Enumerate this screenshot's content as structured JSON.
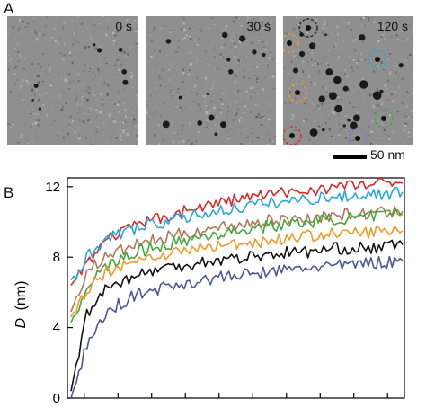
{
  "panel_a": {
    "letter": "A",
    "frames": [
      {
        "time": "0 s"
      },
      {
        "time": "30 s"
      },
      {
        "time": "120 s"
      }
    ],
    "scale_label": "50 nm"
  },
  "panel_b": {
    "letter": "B"
  },
  "chart_data": {
    "type": "line",
    "ylabel_italic": "D",
    "ylabel_unit": "(nm)",
    "ylim": [
      0,
      12.5
    ],
    "yticks": [
      0,
      4,
      8,
      12
    ],
    "xticks_count": 10,
    "series_colors": [
      "#d72a2b",
      "#2ba8d9",
      "#b07a5a",
      "#44a83c",
      "#f09a28",
      "#111111",
      "#4e559c"
    ],
    "series": [
      {
        "color": "#d72a2b",
        "y": [
          6.4,
          7.7,
          8.8,
          9.4,
          9.7,
          10.1,
          10.3,
          10.6,
          10.8,
          11.0,
          11.2,
          11.4,
          11.5,
          11.6,
          11.7,
          11.8,
          11.9,
          12.0,
          12.1,
          12.1,
          12.2,
          12.2
        ]
      },
      {
        "color": "#2ba8d9",
        "y": [
          6.7,
          8.0,
          8.9,
          9.3,
          9.6,
          9.8,
          10.0,
          10.2,
          10.4,
          10.6,
          10.7,
          10.9,
          11.0,
          11.1,
          11.2,
          11.3,
          11.4,
          11.4,
          11.5,
          11.6,
          11.6,
          11.7
        ]
      },
      {
        "color": "#b07a5a",
        "y": [
          4.9,
          7.2,
          7.9,
          8.3,
          8.7,
          8.9,
          9.1,
          9.3,
          9.5,
          9.6,
          9.8,
          9.9,
          10.0,
          10.1,
          10.2,
          10.2,
          10.3,
          10.4,
          10.4,
          10.5,
          10.5,
          10.6
        ]
      },
      {
        "color": "#44a83c",
        "y": [
          4.3,
          6.3,
          7.3,
          7.8,
          8.2,
          8.5,
          8.7,
          8.9,
          9.1,
          9.3,
          9.4,
          9.6,
          9.7,
          9.8,
          9.9,
          10.0,
          10.1,
          10.2,
          10.2,
          10.3,
          10.4,
          10.4
        ]
      },
      {
        "color": "#f09a28",
        "y": [
          4.6,
          6.2,
          7.0,
          7.5,
          7.8,
          8.0,
          8.2,
          8.3,
          8.5,
          8.6,
          8.7,
          8.8,
          8.9,
          9.0,
          9.1,
          9.2,
          9.3,
          9.3,
          9.4,
          9.4,
          9.5,
          9.5
        ]
      },
      {
        "color": "#111111",
        "y": [
          0.4,
          4.8,
          6.1,
          6.6,
          6.9,
          7.2,
          7.4,
          7.5,
          7.7,
          7.8,
          7.9,
          8.0,
          8.1,
          8.2,
          8.3,
          8.3,
          8.4,
          8.5,
          8.5,
          8.5,
          8.6,
          8.7
        ]
      },
      {
        "color": "#4e559c",
        "y": [
          0.0,
          3.0,
          4.5,
          5.3,
          5.8,
          6.1,
          6.3,
          6.5,
          6.6,
          6.8,
          6.9,
          7.0,
          7.1,
          7.2,
          7.3,
          7.4,
          7.5,
          7.5,
          7.6,
          7.7,
          7.7,
          7.8
        ]
      }
    ]
  }
}
